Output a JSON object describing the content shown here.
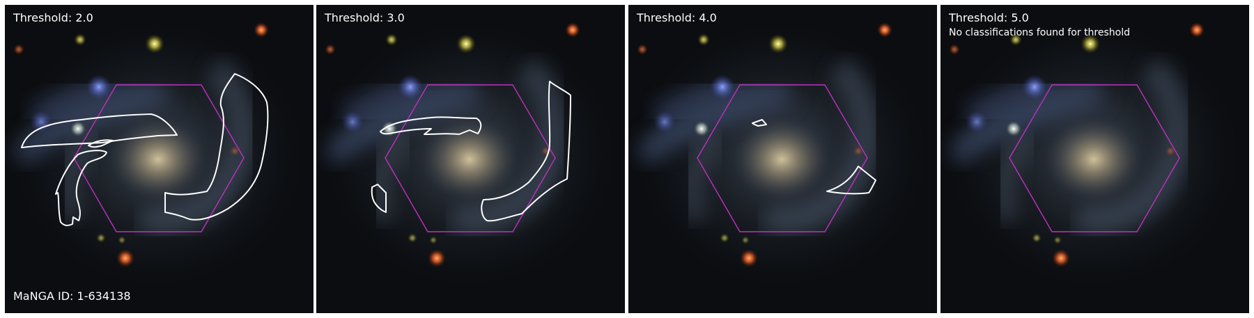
{
  "figure": {
    "manga_id_label": "MaNGA ID: 1-634138",
    "panels": [
      {
        "title": "Threshold: 2.0",
        "note": ""
      },
      {
        "title": "Threshold: 3.0",
        "note": ""
      },
      {
        "title": "Threshold: 4.0",
        "note": ""
      },
      {
        "title": "Threshold: 5.0",
        "note": "No classifications found for threshold"
      }
    ]
  },
  "colors": {
    "ifu_hexagon": "#c030c0",
    "contour": "#ffffff",
    "background": "#0b0d10"
  }
}
